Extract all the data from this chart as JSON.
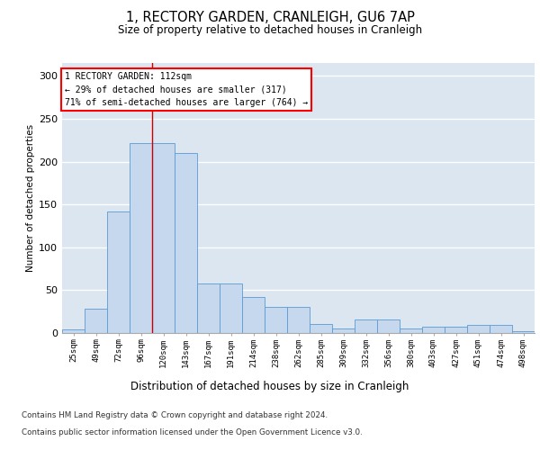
{
  "title": "1, RECTORY GARDEN, CRANLEIGH, GU6 7AP",
  "subtitle": "Size of property relative to detached houses in Cranleigh",
  "xlabel": "Distribution of detached houses by size in Cranleigh",
  "ylabel": "Number of detached properties",
  "categories": [
    "25sqm",
    "49sqm",
    "72sqm",
    "96sqm",
    "120sqm",
    "143sqm",
    "167sqm",
    "191sqm",
    "214sqm",
    "238sqm",
    "262sqm",
    "285sqm",
    "309sqm",
    "332sqm",
    "356sqm",
    "380sqm",
    "403sqm",
    "427sqm",
    "451sqm",
    "474sqm",
    "498sqm"
  ],
  "values": [
    4,
    28,
    142,
    222,
    222,
    210,
    58,
    58,
    42,
    30,
    30,
    10,
    5,
    16,
    16,
    5,
    7,
    7,
    9,
    9,
    2
  ],
  "bar_color": "#c5d8ed",
  "bar_edge_color": "#5b9bd5",
  "background_color": "#dce6f1",
  "vline_x": 3.5,
  "vline_color": "#cc0000",
  "annotation_title": "1 RECTORY GARDEN: 112sqm",
  "annotation_line1": "← 29% of detached houses are smaller (317)",
  "annotation_line2": "71% of semi-detached houses are larger (764) →",
  "ylim": [
    0,
    315
  ],
  "yticks": [
    0,
    50,
    100,
    150,
    200,
    250,
    300
  ],
  "footer_line1": "Contains HM Land Registry data © Crown copyright and database right 2024.",
  "footer_line2": "Contains public sector information licensed under the Open Government Licence v3.0."
}
